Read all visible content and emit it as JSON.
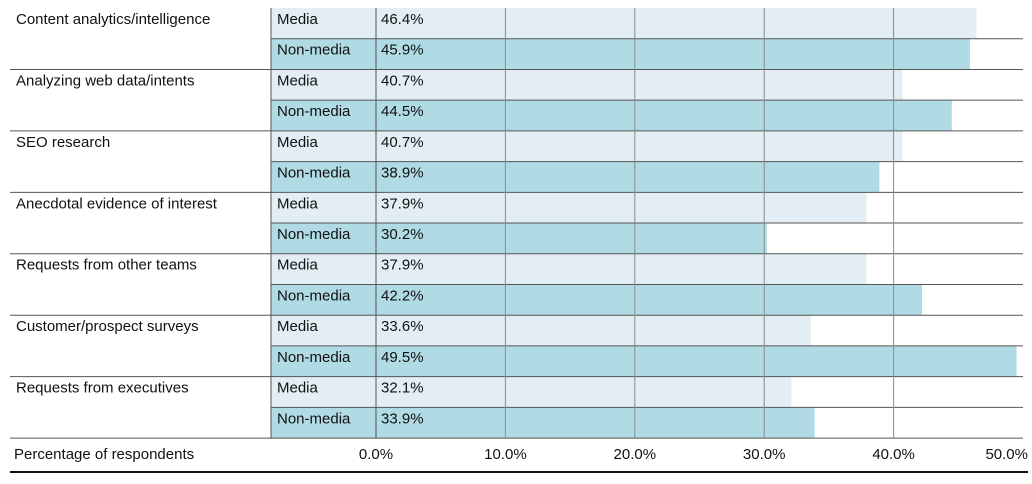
{
  "chart_data": {
    "type": "bar",
    "orientation": "horizontal",
    "categories": [
      "Content analytics/intelligence",
      "Analyzing web data/intents",
      "SEO research",
      "Anecdotal evidence of interest",
      "Requests from other teams",
      "Customer/prospect surveys",
      "Requests from executives"
    ],
    "series": [
      {
        "name": "Media",
        "color": "#e2eef4",
        "values": [
          46.4,
          40.7,
          40.7,
          37.9,
          37.9,
          33.6,
          32.1
        ],
        "value_labels": [
          "46.4%",
          "40.7%",
          "40.7%",
          "37.9%",
          "37.9%",
          "33.6%",
          "32.1%"
        ]
      },
      {
        "name": "Non-media",
        "color": "#b0dbe4",
        "values": [
          45.9,
          44.5,
          38.9,
          30.2,
          42.2,
          49.5,
          33.9
        ],
        "value_labels": [
          "45.9%",
          "44.5%",
          "38.9%",
          "30.2%",
          "42.2%",
          "49.5%",
          "33.9%"
        ]
      }
    ],
    "x_label": "Percentage of respondents",
    "xlim": [
      0,
      50
    ],
    "xticks": [
      {
        "value": 0,
        "label": "0.0%"
      },
      {
        "value": 10,
        "label": "10.0%"
      },
      {
        "value": 20,
        "label": "20.0%"
      },
      {
        "value": 30,
        "label": "30.0%"
      },
      {
        "value": 40,
        "label": "40.0%"
      },
      {
        "value": 50,
        "label": "50.0%"
      }
    ],
    "grid": true
  }
}
